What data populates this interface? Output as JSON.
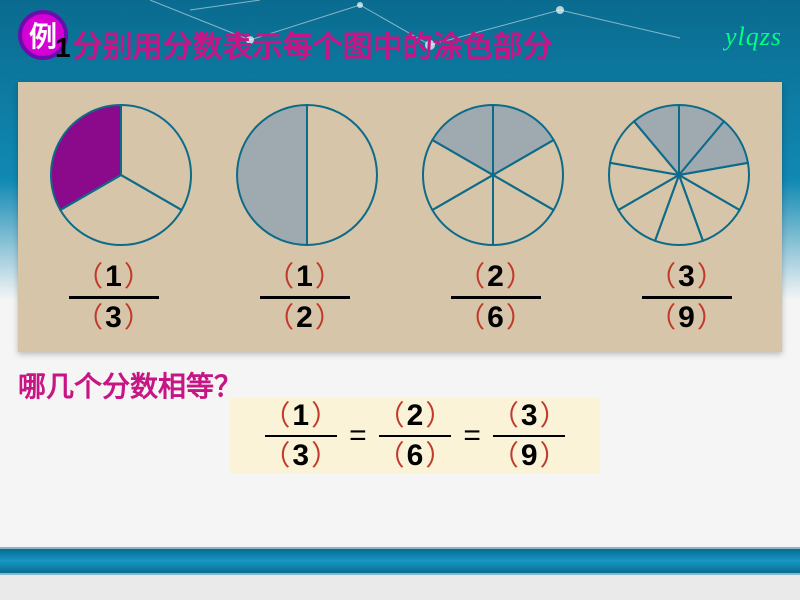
{
  "badge": {
    "label": "例"
  },
  "title": {
    "number": "1",
    "text": "分别用分数表示每个图中的涂色部分"
  },
  "signature": "ylqzs",
  "circles": {
    "bg": "#d6c5a8",
    "stroke": "#0d6b8a",
    "stroke_width": 2,
    "highlight_fill": "#8b0a8b",
    "shade_fill": "#9faab0",
    "items": [
      {
        "segments": 3,
        "shaded": 1,
        "highlight": true
      },
      {
        "segments": 2,
        "shaded": 1,
        "highlight": false
      },
      {
        "segments": 6,
        "shaded": 2,
        "highlight": false
      },
      {
        "segments": 9,
        "shaded": 3,
        "highlight": false
      }
    ]
  },
  "fractions": [
    {
      "num": "1",
      "den": "3"
    },
    {
      "num": "1",
      "den": "2"
    },
    {
      "num": "2",
      "den": "6"
    },
    {
      "num": "3",
      "den": "9"
    }
  ],
  "question": "哪几个分数相等？",
  "equation": {
    "terms": [
      {
        "num": "1",
        "den": "3"
      },
      {
        "num": "2",
        "den": "6"
      },
      {
        "num": "3",
        "den": "9"
      }
    ],
    "eq_symbol": "="
  },
  "colors": {
    "title_text": "#c71585",
    "paren": "#c0392b",
    "signature": "#00ff7f",
    "badge_bg": "#d400d4",
    "badge_border": "#6a0dad"
  }
}
